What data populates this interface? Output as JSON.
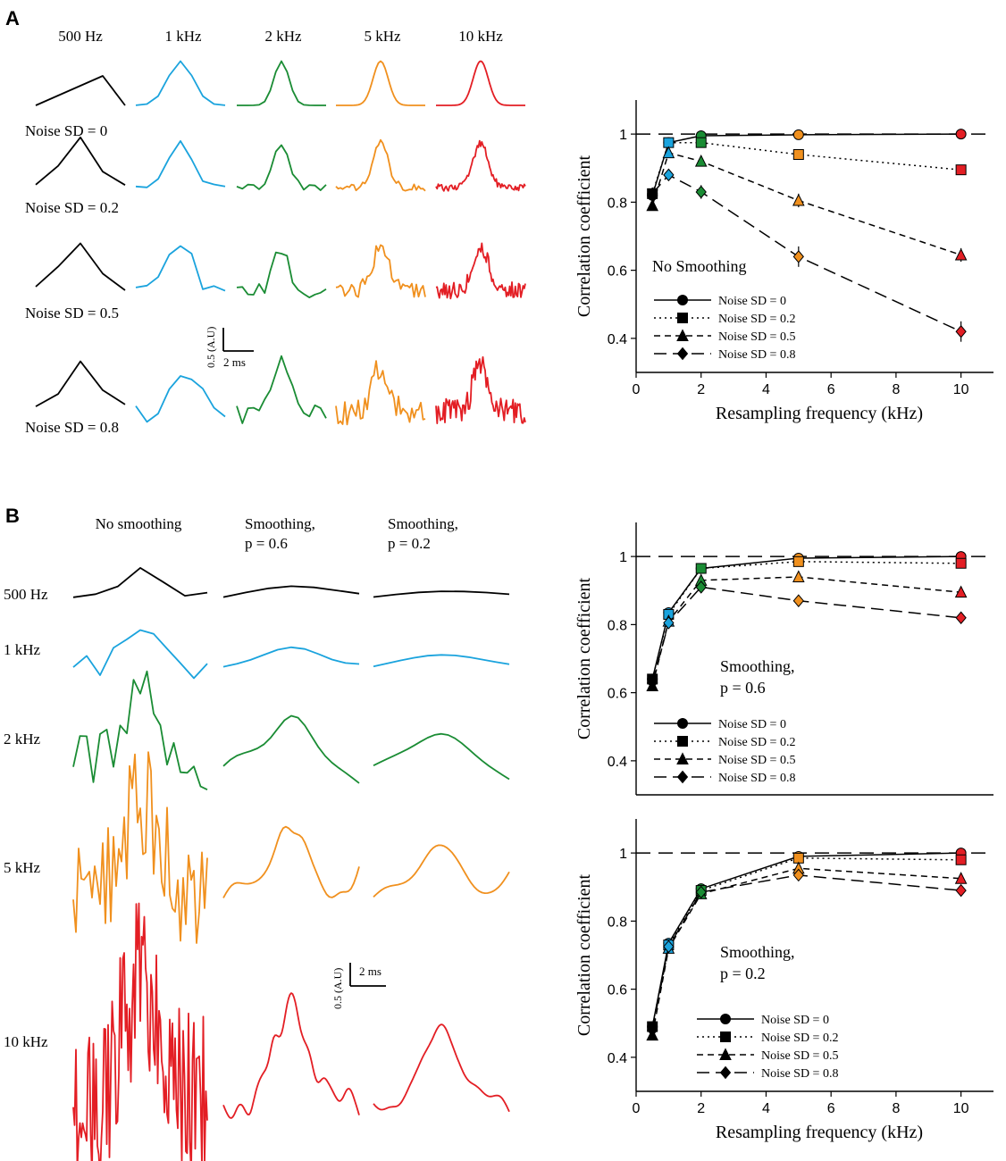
{
  "panels": {
    "a": {
      "letter": "A"
    },
    "b": {
      "letter": "B"
    }
  },
  "colors": {
    "f500": "#000000",
    "f1k": "#1aa3dd",
    "f2k": "#1a8c34",
    "f5k": "#f0901e",
    "f10k": "#e31e24"
  },
  "panel_a_traces": {
    "column_headers": [
      "500 Hz",
      "1 kHz",
      "2 kHz",
      "5 kHz",
      "10 kHz"
    ],
    "row_labels": [
      "Noise SD = 0",
      "Noise SD = 0.2",
      "Noise SD = 0.5",
      "Noise SD = 0.8"
    ],
    "scale_bar": {
      "y_label": "0.5 (A.U)",
      "x_label": "2 ms"
    }
  },
  "panel_b_traces": {
    "column_headers": [
      "No smoothing",
      "Smoothing,\np = 0.6",
      "Smoothing,\np = 0.2"
    ],
    "row_labels": [
      "500 Hz",
      "1 kHz",
      "2 kHz",
      "5 kHz",
      "10 kHz"
    ],
    "scale_bar": {
      "y_label": "0.5 (A.U)",
      "x_label": "2 ms"
    }
  },
  "chart_data": [
    {
      "id": "A-right",
      "type": "line",
      "annotation": "No Smoothing",
      "xlabel": "Resampling frequency (kHz)",
      "ylabel": "Correlation coefficient",
      "xlim": [
        0,
        11
      ],
      "ylim": [
        0.3,
        1.1
      ],
      "xticks": [
        0,
        2,
        4,
        6,
        8,
        10
      ],
      "yticks": [
        0.4,
        0.6,
        0.8,
        1
      ],
      "reference_line": 1,
      "x": [
        0.5,
        1,
        2,
        5,
        10
      ],
      "series": [
        {
          "name": "Noise SD = 0",
          "marker": "circle",
          "dash": "solid",
          "values": [
            0.82,
            0.975,
            0.995,
            0.998,
            1.0
          ],
          "err": [
            0.01,
            0.005,
            0.003,
            0.002,
            0.002
          ]
        },
        {
          "name": "Noise SD = 0.2",
          "marker": "square",
          "dash": "dotted",
          "values": [
            0.825,
            0.975,
            0.975,
            0.94,
            0.895
          ],
          "err": [
            0.01,
            0.005,
            0.005,
            0.005,
            0.005
          ]
        },
        {
          "name": "Noise SD = 0.5",
          "marker": "triangle",
          "dash": "dashed",
          "values": [
            0.79,
            0.945,
            0.92,
            0.805,
            0.645
          ],
          "err": [
            0.015,
            0.008,
            0.01,
            0.02,
            0.02
          ]
        },
        {
          "name": "Noise SD = 0.8",
          "marker": "diamond",
          "dash": "longdash",
          "values": [
            0.825,
            0.88,
            0.83,
            0.64,
            0.42
          ],
          "err": [
            0.015,
            0.01,
            0.02,
            0.03,
            0.03
          ]
        }
      ]
    },
    {
      "id": "B-top",
      "type": "line",
      "annotation": "Smoothing,\np = 0.6",
      "xlabel": "",
      "ylabel": "Correlation coefficient",
      "xlim": [
        0,
        11
      ],
      "ylim": [
        0.3,
        1.1
      ],
      "xticks": [],
      "yticks": [
        0.4,
        0.6,
        0.8,
        1
      ],
      "reference_line": 1,
      "x": [
        0.5,
        1,
        2,
        5,
        10
      ],
      "series": [
        {
          "name": "Noise SD = 0",
          "marker": "circle",
          "dash": "solid",
          "values": [
            0.64,
            0.835,
            0.965,
            0.995,
            1.0
          ],
          "err": [
            0.01,
            0.01,
            0.005,
            0.003,
            0.002
          ]
        },
        {
          "name": "Noise SD = 0.2",
          "marker": "square",
          "dash": "dotted",
          "values": [
            0.64,
            0.83,
            0.965,
            0.985,
            0.98
          ],
          "err": [
            0.01,
            0.01,
            0.005,
            0.005,
            0.005
          ]
        },
        {
          "name": "Noise SD = 0.5",
          "marker": "triangle",
          "dash": "dashed",
          "values": [
            0.62,
            0.81,
            0.93,
            0.94,
            0.895
          ],
          "err": [
            0.015,
            0.01,
            0.01,
            0.01,
            0.01
          ]
        },
        {
          "name": "Noise SD = 0.8",
          "marker": "diamond",
          "dash": "longdash",
          "values": [
            0.63,
            0.805,
            0.91,
            0.87,
            0.82
          ],
          "err": [
            0.015,
            0.01,
            0.01,
            0.01,
            0.01
          ]
        }
      ]
    },
    {
      "id": "B-bottom",
      "type": "line",
      "annotation": "Smoothing,\np = 0.2",
      "xlabel": "Resampling frequency (kHz)",
      "ylabel": "Correlation coefficient",
      "xlim": [
        0,
        11
      ],
      "ylim": [
        0.3,
        1.1
      ],
      "xticks": [
        0,
        2,
        4,
        6,
        8,
        10
      ],
      "yticks": [
        0.4,
        0.6,
        0.8,
        1
      ],
      "reference_line": 1,
      "x": [
        0.5,
        1,
        2,
        5,
        10
      ],
      "series": [
        {
          "name": "Noise SD = 0",
          "marker": "circle",
          "dash": "solid",
          "values": [
            0.49,
            0.735,
            0.895,
            0.99,
            1.0
          ],
          "err": [
            0.015,
            0.01,
            0.005,
            0.003,
            0.002
          ]
        },
        {
          "name": "Noise SD = 0.2",
          "marker": "square",
          "dash": "dotted",
          "values": [
            0.49,
            0.73,
            0.89,
            0.985,
            0.98
          ],
          "err": [
            0.015,
            0.01,
            0.005,
            0.005,
            0.005
          ]
        },
        {
          "name": "Noise SD = 0.5",
          "marker": "triangle",
          "dash": "dashed",
          "values": [
            0.465,
            0.72,
            0.88,
            0.955,
            0.925
          ],
          "err": [
            0.015,
            0.01,
            0.008,
            0.008,
            0.008
          ]
        },
        {
          "name": "Noise SD = 0.8",
          "marker": "diamond",
          "dash": "longdash",
          "values": [
            0.48,
            0.725,
            0.885,
            0.935,
            0.89
          ],
          "err": [
            0.015,
            0.01,
            0.008,
            0.008,
            0.008
          ]
        }
      ]
    }
  ]
}
